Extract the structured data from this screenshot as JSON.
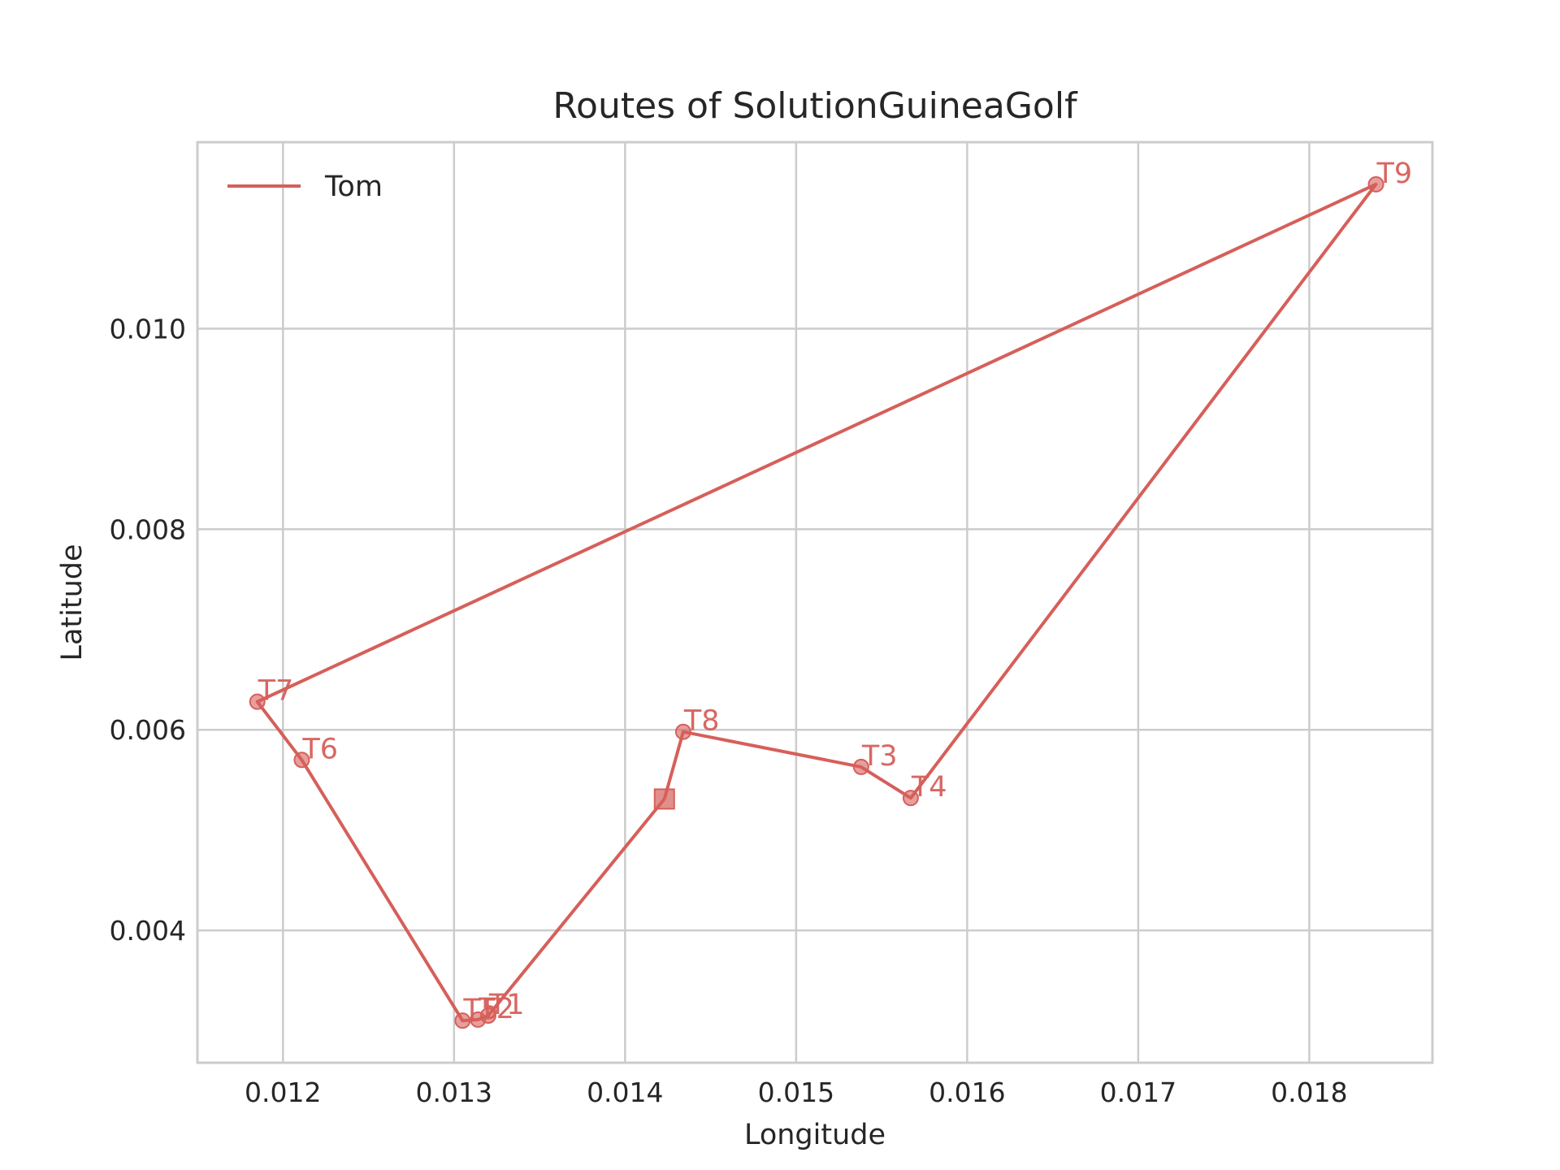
{
  "chart_data": {
    "type": "line",
    "title": "Routes of SolutionGuineaGolf",
    "xlabel": "Longitude",
    "ylabel": "Latitude",
    "xlim": [
      0.0115,
      0.01872
    ],
    "ylim": [
      0.00268,
      0.01186
    ],
    "xticks": [
      0.012,
      0.013,
      0.014,
      0.015,
      0.016,
      0.017,
      0.018
    ],
    "xtick_labels": [
      "0.012",
      "0.013",
      "0.014",
      "0.015",
      "0.016",
      "0.017",
      "0.018"
    ],
    "yticks": [
      0.004,
      0.006,
      0.008,
      0.01
    ],
    "ytick_labels": [
      "0.004",
      "0.006",
      "0.008",
      "0.010"
    ],
    "grid": true,
    "legend": {
      "placement": "top-left",
      "entries": [
        "Tom"
      ]
    },
    "color": "#d65f5a",
    "depot": {
      "x": 0.01423,
      "y": 0.00531
    },
    "series": [
      {
        "name": "Tom",
        "points": [
          {
            "label": "",
            "x": 0.01423,
            "y": 0.00531,
            "marker": "square"
          },
          {
            "label": "T8",
            "x": 0.01434,
            "y": 0.00598,
            "marker": "circle"
          },
          {
            "label": "T3",
            "x": 0.01538,
            "y": 0.00563,
            "marker": "circle"
          },
          {
            "label": "T4",
            "x": 0.01567,
            "y": 0.00532,
            "marker": "circle"
          },
          {
            "label": "T9",
            "x": 0.01839,
            "y": 0.01144,
            "marker": "circle"
          },
          {
            "label": "T7",
            "x": 0.01185,
            "y": 0.00628,
            "marker": "circle"
          },
          {
            "label": "T6",
            "x": 0.01211,
            "y": 0.0057,
            "marker": "circle"
          },
          {
            "label": "T5",
            "x": 0.01305,
            "y": 0.0031,
            "marker": "circle"
          },
          {
            "label": "T2",
            "x": 0.01314,
            "y": 0.00311,
            "marker": "circle"
          },
          {
            "label": "T1",
            "x": 0.0132,
            "y": 0.00315,
            "marker": "circle"
          },
          {
            "label": "",
            "x": 0.01423,
            "y": 0.00531,
            "marker": "square"
          }
        ]
      }
    ]
  }
}
